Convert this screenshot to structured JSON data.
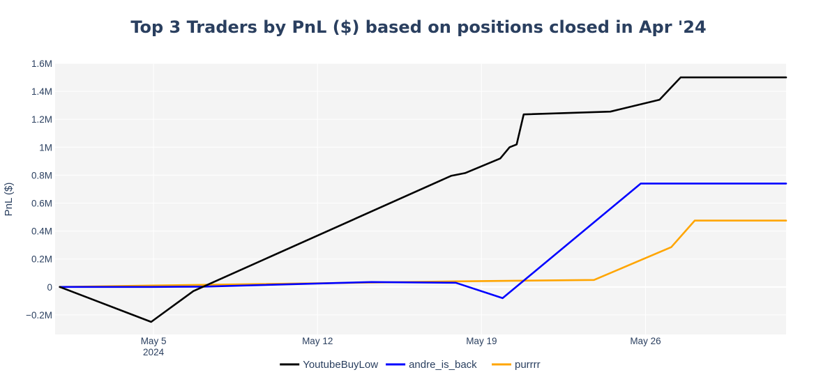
{
  "chart_data": {
    "type": "line",
    "title": "Top 3 Traders by PnL ($) based on positions closed in Apr '24",
    "xlabel": "",
    "ylabel": "PnL ($)",
    "x_range": [
      -0.2,
      31.0
    ],
    "ylim": [
      -340000,
      1600000
    ],
    "grid": true,
    "legend_position": "bottom-center",
    "y_ticks": [
      {
        "value": -200000,
        "label": "−0.2M"
      },
      {
        "value": 0,
        "label": "0"
      },
      {
        "value": 200000,
        "label": "0.2M"
      },
      {
        "value": 400000,
        "label": "0.4M"
      },
      {
        "value": 600000,
        "label": "0.6M"
      },
      {
        "value": 800000,
        "label": "0.8M"
      },
      {
        "value": 1000000,
        "label": "1M"
      },
      {
        "value": 1200000,
        "label": "1.2M"
      },
      {
        "value": 1400000,
        "label": "1.4M"
      },
      {
        "value": 1600000,
        "label": "1.6M"
      }
    ],
    "x_ticks": [
      {
        "value": 4,
        "label": "May 5",
        "sublabel": "2024"
      },
      {
        "value": 11,
        "label": "May 12"
      },
      {
        "value": 18,
        "label": "May 19"
      },
      {
        "value": 25,
        "label": "May 26"
      }
    ],
    "series": [
      {
        "name": "YoutubeBuyLow",
        "color": "#000000",
        "x": [
          0,
          3.9,
          5.7,
          6.1,
          16.7,
          17.3,
          18.8,
          19.2,
          19.5,
          19.8,
          23.5,
          25.6,
          26.5,
          31.0
        ],
        "y": [
          0,
          -250000,
          -30000,
          0,
          795000,
          815000,
          920000,
          1000000,
          1020000,
          1235000,
          1255000,
          1340000,
          1500000,
          1500000
        ]
      },
      {
        "name": "andre_is_back",
        "color": "#0000ff",
        "x": [
          0,
          3.9,
          6.1,
          13.3,
          16.9,
          18.9,
          24.8,
          31.0
        ],
        "y": [
          0,
          0,
          2000,
          35000,
          30000,
          -80000,
          740000,
          740000
        ]
      },
      {
        "name": "purrrr",
        "color": "#ffa500",
        "x": [
          0,
          3.9,
          6.1,
          16.9,
          19.8,
          22.8,
          26.1,
          27.1,
          31.0
        ],
        "y": [
          0,
          10000,
          15000,
          40000,
          45000,
          50000,
          285000,
          475000,
          475000
        ]
      }
    ]
  }
}
